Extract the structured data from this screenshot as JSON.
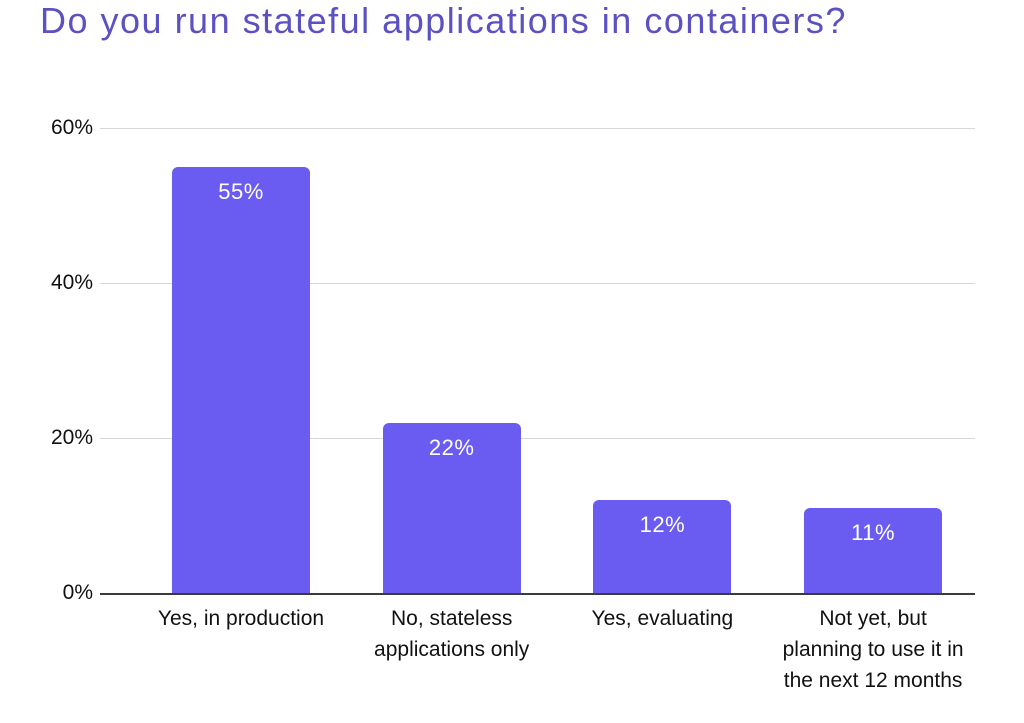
{
  "title": "Do you run stateful applications in containers?",
  "colors": {
    "title": "#5c51c0",
    "bar": "#6a5cf0",
    "bar_label": "#ffffff",
    "gridline": "#d6d6d6",
    "axis_line": "#3b3b3b",
    "tick_label": "#111111",
    "category_label": "#111111",
    "background": "#ffffff"
  },
  "chart_data": {
    "type": "bar",
    "title": "Do you run stateful applications in containers?",
    "categories": [
      "Yes, in production",
      "No, stateless applications only",
      "Yes, evaluating",
      "Not yet, but planning to use it in the next 12 months"
    ],
    "values": [
      55,
      22,
      12,
      11
    ],
    "value_labels": [
      "55%",
      "22%",
      "12%",
      "11%"
    ],
    "xlabel": "",
    "ylabel": "",
    "ylim": [
      0,
      60
    ],
    "y_ticks": [
      {
        "value": 60,
        "label": "60%"
      },
      {
        "value": 40,
        "label": "40%"
      },
      {
        "value": 20,
        "label": "20%"
      },
      {
        "value": 0,
        "label": "0%"
      }
    ],
    "grid": true,
    "legend": false,
    "bar_color": "#6a5cf0"
  }
}
